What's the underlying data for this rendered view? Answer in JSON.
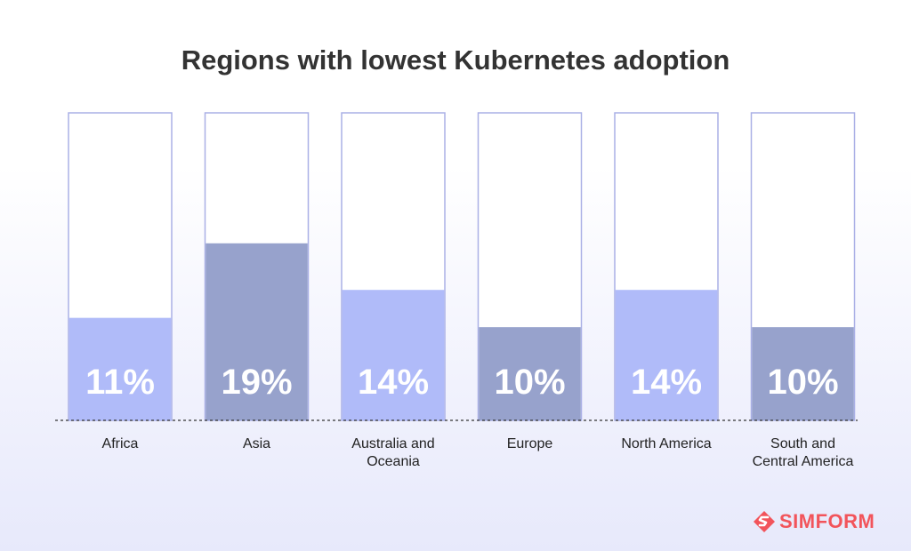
{
  "chart_data": {
    "type": "bar",
    "title": "Regions with lowest Kubernetes adoption",
    "categories": [
      [
        "Africa"
      ],
      [
        "Asia"
      ],
      [
        "Australia and",
        "Oceania"
      ],
      [
        "Europe"
      ],
      [
        "North America"
      ],
      [
        "South and",
        "Central America"
      ]
    ],
    "values": [
      11,
      19,
      14,
      10,
      14,
      10
    ],
    "value_labels": [
      "11%",
      "19%",
      "14%",
      "10%",
      "14%",
      "10%"
    ],
    "ylim": [
      0,
      33
    ],
    "bar_colors": [
      "#b0bbf9",
      "#97a2cc",
      "#b0bbf9",
      "#97a2cc",
      "#b0bbf9",
      "#97a2cc"
    ],
    "track_border_color": "#aab0e6",
    "baseline": "dashed"
  },
  "brand": {
    "name": "SIMFORM",
    "color": "#f2545b",
    "icon": "simform-logo-icon"
  }
}
